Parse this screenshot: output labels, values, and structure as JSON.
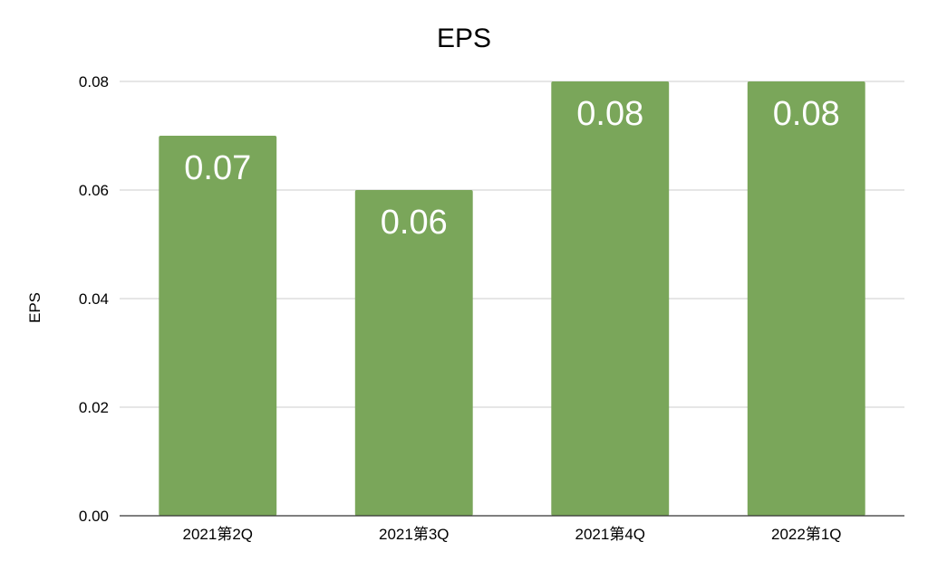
{
  "chart_data": {
    "type": "bar",
    "title": "EPS",
    "xlabel": "",
    "ylabel": "EPS",
    "categories": [
      "2021第2Q",
      "2021第3Q",
      "2021第4Q",
      "2022第1Q"
    ],
    "values": [
      0.07,
      0.06,
      0.08,
      0.08
    ],
    "data_labels": [
      "0.07",
      "0.06",
      "0.08",
      "0.08"
    ],
    "ylim": [
      0,
      0.08
    ],
    "yticks": [
      0.0,
      0.02,
      0.04,
      0.06,
      0.08
    ],
    "ytick_labels": [
      "0.00",
      "0.02",
      "0.04",
      "0.06",
      "0.08"
    ],
    "grid": true,
    "legend": "none",
    "bar_color": "#7aa65a",
    "label_color": "#ffffff"
  }
}
